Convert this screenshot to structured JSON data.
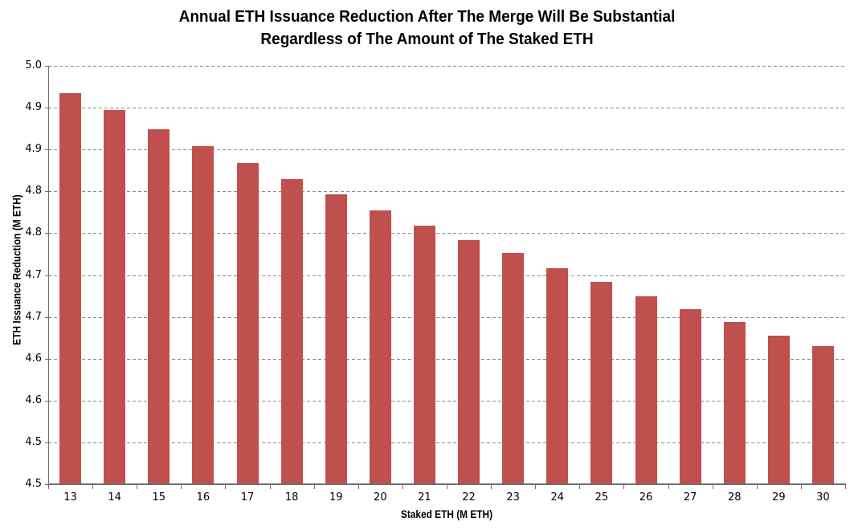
{
  "chart_data": {
    "type": "bar",
    "title_line1": "Annual ETH Issuance Reduction After The Merge Will Be Substantial",
    "title_line2": "Regardless of The Amount of The Staked ETH",
    "xlabel": "Staked ETH (M ETH)",
    "ylabel": "ETH Issuance Reduction (M ETH)",
    "categories": [
      "13",
      "14",
      "15",
      "16",
      "17",
      "18",
      "19",
      "20",
      "21",
      "22",
      "23",
      "24",
      "25",
      "26",
      "27",
      "28",
      "29",
      "30"
    ],
    "values": [
      4.967,
      4.947,
      4.924,
      4.904,
      4.884,
      4.865,
      4.846,
      4.827,
      4.809,
      4.792,
      4.776,
      4.758,
      4.742,
      4.725,
      4.709,
      4.694,
      4.678,
      4.665
    ],
    "ylim": [
      4.5,
      5.0
    ],
    "ytick_step": 0.05,
    "ytick_labels_top_to_bottom": [
      "5.0",
      "4.9",
      "4.9",
      "4.8",
      "4.8",
      "4.7",
      "4.7",
      "4.6",
      "4.6",
      "4.5",
      "4.5"
    ],
    "grid": true,
    "legend_position": "none",
    "bar_color": "#c0504d",
    "gridline_color": "#8c8c8c",
    "axis_color": "#6f6f6f",
    "text_color": "#000000"
  }
}
